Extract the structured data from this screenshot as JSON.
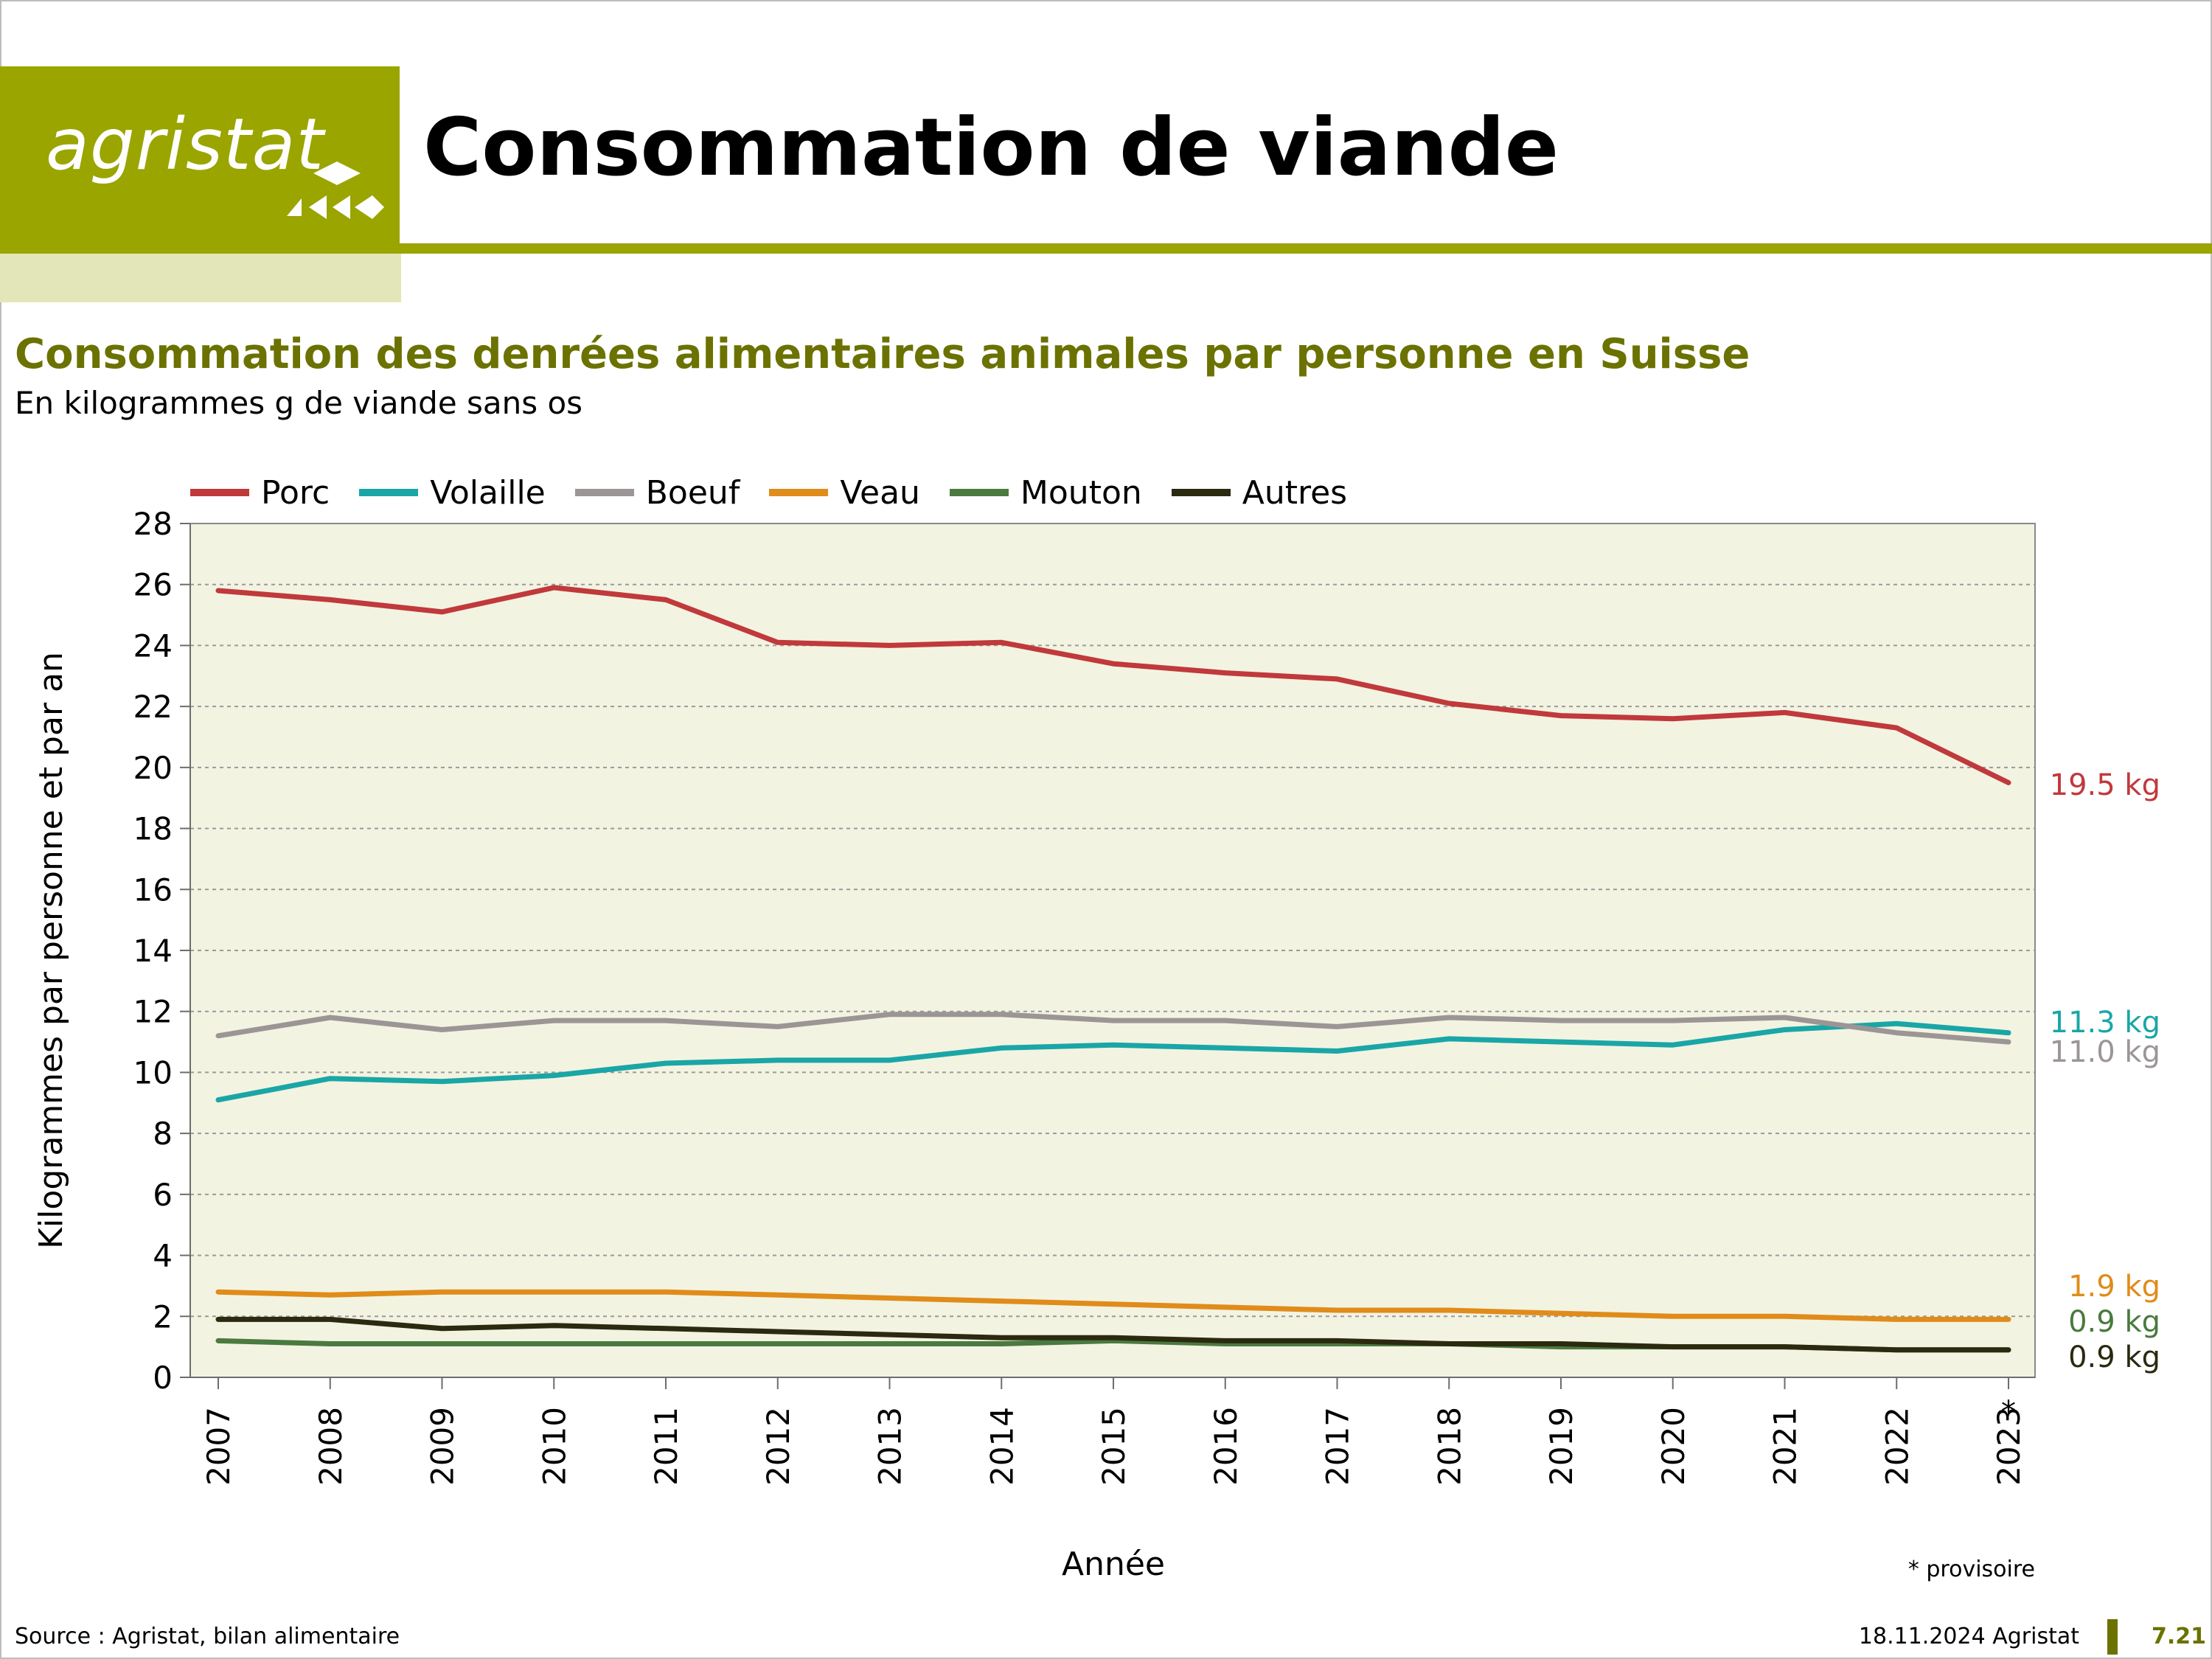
{
  "header": {
    "logo_text": "agristat",
    "title": "Consommation de viande"
  },
  "subtitle": "Consommation des denrées alimentaires animales par personne en Suisse",
  "unit_line": "En kilogrammes g de viande sans os",
  "chart_data": {
    "type": "line",
    "x": [
      "2007",
      "2008",
      "2009",
      "2010",
      "2011",
      "2012",
      "2013",
      "2014",
      "2015",
      "2016",
      "2017",
      "2018",
      "2019",
      "2020",
      "2021",
      "2022",
      "2023"
    ],
    "xlabel": "Année",
    "ylabel": "Kilogrammes par personne et par an",
    "ylim": [
      0,
      28
    ],
    "yticks": [
      0,
      2,
      4,
      6,
      8,
      10,
      12,
      14,
      16,
      18,
      20,
      22,
      24,
      26,
      28
    ],
    "grid": true,
    "legend_position": "top",
    "provisional_marker": "*",
    "provisional_note": "* provisoire",
    "series": [
      {
        "name": "Porc",
        "color": "#c0393b",
        "end_label": "19.5 kg",
        "values": [
          25.8,
          25.5,
          25.1,
          25.9,
          25.5,
          24.1,
          24.0,
          24.1,
          23.4,
          23.1,
          22.9,
          22.1,
          21.7,
          21.6,
          21.8,
          21.3,
          19.5
        ]
      },
      {
        "name": "Volaille",
        "color": "#1aa6a6",
        "end_label": "11.3 kg",
        "values": [
          9.1,
          9.8,
          9.7,
          9.9,
          10.3,
          10.4,
          10.4,
          10.8,
          10.9,
          10.8,
          10.7,
          11.1,
          11.0,
          10.9,
          11.4,
          11.6,
          11.3
        ]
      },
      {
        "name": "Boeuf",
        "color": "#9c9596",
        "end_label": "11.0 kg",
        "values": [
          11.2,
          11.8,
          11.4,
          11.7,
          11.7,
          11.5,
          11.9,
          11.9,
          11.7,
          11.7,
          11.5,
          11.8,
          11.7,
          11.7,
          11.8,
          11.3,
          11.0
        ]
      },
      {
        "name": "Veau",
        "color": "#e08c1a",
        "end_label": "1.9 kg",
        "values": [
          2.8,
          2.7,
          2.8,
          2.8,
          2.8,
          2.7,
          2.6,
          2.5,
          2.4,
          2.3,
          2.2,
          2.2,
          2.1,
          2.0,
          2.0,
          1.9,
          1.9
        ]
      },
      {
        "name": "Mouton",
        "color": "#4a7a3e",
        "end_label": "0.9 kg",
        "values": [
          1.2,
          1.1,
          1.1,
          1.1,
          1.1,
          1.1,
          1.1,
          1.1,
          1.2,
          1.1,
          1.1,
          1.1,
          1.0,
          1.0,
          1.0,
          0.9,
          0.9
        ]
      },
      {
        "name": "Autres",
        "color": "#2b2a10",
        "end_label": "0.9 kg",
        "values": [
          1.9,
          1.9,
          1.6,
          1.7,
          1.6,
          1.5,
          1.4,
          1.3,
          1.3,
          1.2,
          1.2,
          1.1,
          1.1,
          1.0,
          1.0,
          0.9,
          0.9
        ]
      }
    ]
  },
  "footer": {
    "source": "Source : Agristat, bilan alimentaire",
    "date_org": "18.11.2024 Agristat",
    "code": "7.21"
  },
  "colors": {
    "brand_green": "#9aa500",
    "brand_dark_green": "#6b7200",
    "brand_light": "#e3e6b8",
    "plot_background": "#f3f3e2"
  }
}
